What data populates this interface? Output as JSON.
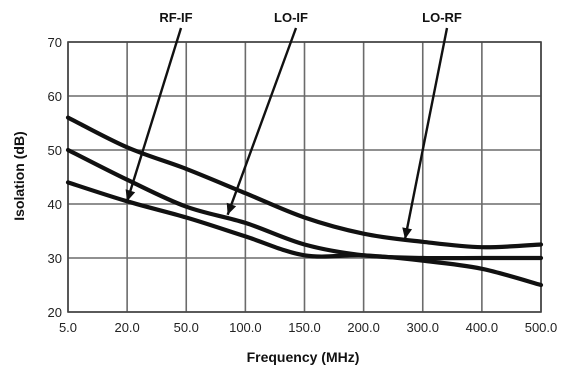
{
  "chart_data": {
    "type": "line",
    "title": "",
    "xlabel": "Frequency (MHz)",
    "ylabel": "Isolation (dB)",
    "categories": [
      "5.0",
      "20.0",
      "50.0",
      "100.0",
      "150.0",
      "200.0",
      "300.0",
      "400.0",
      "500.0"
    ],
    "ylim": [
      20,
      70
    ],
    "yticks": [
      20,
      30,
      40,
      50,
      60,
      70
    ],
    "grid": true,
    "legend": "none",
    "series": [
      {
        "name": "LO-RF",
        "values": [
          56,
          50.5,
          46.5,
          42,
          37.5,
          34.5,
          33,
          32,
          32.5
        ]
      },
      {
        "name": "LO-IF",
        "values": [
          50,
          44.5,
          39.5,
          36.5,
          32.5,
          30.5,
          30,
          30,
          30
        ]
      },
      {
        "name": "RF-IF",
        "values": [
          44,
          40.5,
          37.5,
          34,
          30.5,
          30.5,
          29.5,
          28,
          25
        ]
      }
    ],
    "annotations": [
      {
        "text": "RF-IF",
        "series": "RF-IF",
        "target_x": 20.0,
        "target_y": 40.5
      },
      {
        "text": "LO-IF",
        "series": "LO-IF",
        "target_x": 85.0,
        "target_y": 38.0
      },
      {
        "text": "LO-RF",
        "series": "LO-RF",
        "target_x": 270.0,
        "target_y": 33.5
      }
    ]
  }
}
